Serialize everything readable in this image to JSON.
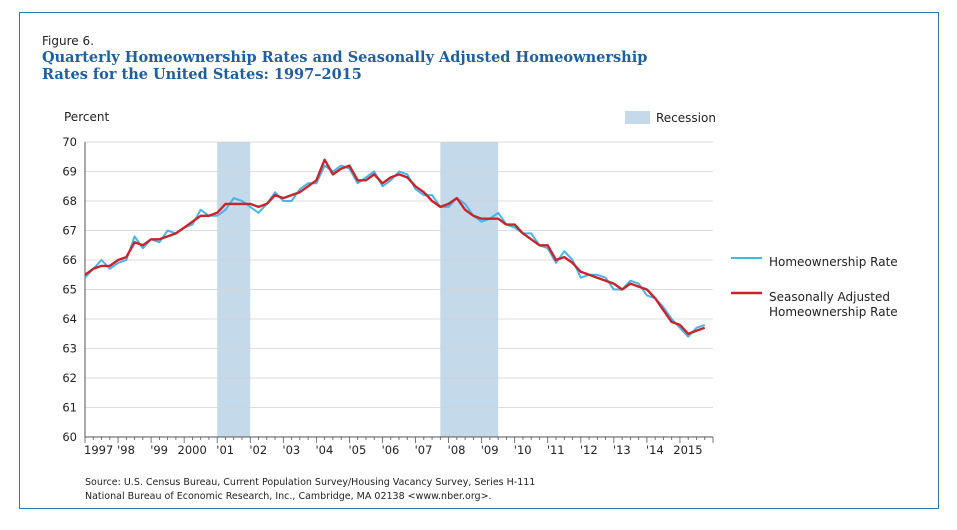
{
  "figure": {
    "label": "Figure 6.",
    "title_line1": "Quarterly Homeownership Rates and Seasonally Adjusted Homeownership",
    "title_line2": "Rates for the United States: 1997–2015",
    "source_line1": "Source: U.S. Census Bureau, Current Population Survey/Housing Vacancy Survey, Series H-111",
    "source_line2": "National Bureau of Economic Research, Inc., Cambridge, MA 02138 <www.nber.org>."
  },
  "colors": {
    "rate": "#4bb3e6",
    "adjusted": "#c8242b",
    "recession": "#c4d9ea",
    "axis": "#555555",
    "frame": "#2a7ab0"
  },
  "chart_data": {
    "type": "line",
    "title": "Quarterly Homeownership Rates and Seasonally Adjusted Homeownership Rates for the United States: 1997–2015",
    "ylabel": "Percent",
    "xlabel": "",
    "ylim": [
      60,
      70
    ],
    "xlim": [
      1997.0,
      2016.0
    ],
    "yticks": [
      "60",
      "61",
      "62",
      "63",
      "64",
      "65",
      "66",
      "67",
      "68",
      "69",
      "70"
    ],
    "xticks": [
      {
        "x": 1997,
        "label": "1997"
      },
      {
        "x": 1998,
        "label": "'98"
      },
      {
        "x": 1999,
        "label": "'99"
      },
      {
        "x": 2000,
        "label": "2000"
      },
      {
        "x": 2001,
        "label": "'01"
      },
      {
        "x": 2002,
        "label": "'02"
      },
      {
        "x": 2003,
        "label": "'03"
      },
      {
        "x": 2004,
        "label": "'04"
      },
      {
        "x": 2005,
        "label": "'05"
      },
      {
        "x": 2006,
        "label": "'06"
      },
      {
        "x": 2007,
        "label": "'07"
      },
      {
        "x": 2008,
        "label": "'08"
      },
      {
        "x": 2009,
        "label": "'09"
      },
      {
        "x": 2010,
        "label": "'10"
      },
      {
        "x": 2011,
        "label": "'11"
      },
      {
        "x": 2012,
        "label": "'12"
      },
      {
        "x": 2013,
        "label": "'13"
      },
      {
        "x": 2014,
        "label": "'14"
      },
      {
        "x": 2015,
        "label": "2015"
      }
    ],
    "recession_label": "Recession",
    "recessions": [
      [
        2001.0,
        2002.0
      ],
      [
        2007.75,
        2009.5
      ]
    ],
    "x_start": 1997.0,
    "x_step": 0.25,
    "series": [
      {
        "name": "Homeownership Rate",
        "values": [
          65.4,
          65.7,
          66.0,
          65.7,
          65.9,
          66.0,
          66.8,
          66.4,
          66.7,
          66.6,
          67.0,
          66.9,
          67.1,
          67.2,
          67.7,
          67.5,
          67.5,
          67.7,
          68.1,
          68.0,
          67.8,
          67.6,
          67.9,
          68.3,
          68.0,
          68.0,
          68.4,
          68.6,
          68.6,
          69.2,
          69.0,
          69.2,
          69.1,
          68.6,
          68.8,
          69.0,
          68.5,
          68.7,
          69.0,
          68.9,
          68.4,
          68.2,
          68.2,
          67.8,
          67.8,
          68.1,
          67.9,
          67.5,
          67.3,
          67.4,
          67.6,
          67.2,
          67.1,
          66.9,
          66.9,
          66.5,
          66.4,
          65.9,
          66.3,
          66.0,
          65.4,
          65.5,
          65.5,
          65.4,
          65.0,
          65.0,
          65.3,
          65.2,
          64.8,
          64.7,
          64.4,
          64.0,
          63.7,
          63.4,
          63.7,
          63.8
        ]
      },
      {
        "name": "Seasonally Adjusted Homeownership Rate",
        "values": [
          65.5,
          65.7,
          65.8,
          65.8,
          66.0,
          66.1,
          66.6,
          66.5,
          66.7,
          66.7,
          66.8,
          66.9,
          67.1,
          67.3,
          67.5,
          67.5,
          67.6,
          67.9,
          67.9,
          67.9,
          67.9,
          67.8,
          67.9,
          68.2,
          68.1,
          68.2,
          68.3,
          68.5,
          68.7,
          69.4,
          68.9,
          69.1,
          69.2,
          68.7,
          68.7,
          68.9,
          68.6,
          68.8,
          68.9,
          68.8,
          68.5,
          68.3,
          68.0,
          67.8,
          67.9,
          68.1,
          67.7,
          67.5,
          67.4,
          67.4,
          67.4,
          67.2,
          67.2,
          66.9,
          66.7,
          66.5,
          66.5,
          66.0,
          66.1,
          65.9,
          65.6,
          65.5,
          65.4,
          65.3,
          65.2,
          65.0,
          65.2,
          65.1,
          65.0,
          64.7,
          64.3,
          63.9,
          63.8,
          63.5,
          63.6,
          63.7
        ]
      }
    ],
    "legend": {
      "position": "right",
      "labels": [
        [
          "Homeownership Rate"
        ],
        [
          "Seasonally Adjusted",
          "Homeownership Rate"
        ]
      ]
    },
    "grid": "horizontal"
  }
}
